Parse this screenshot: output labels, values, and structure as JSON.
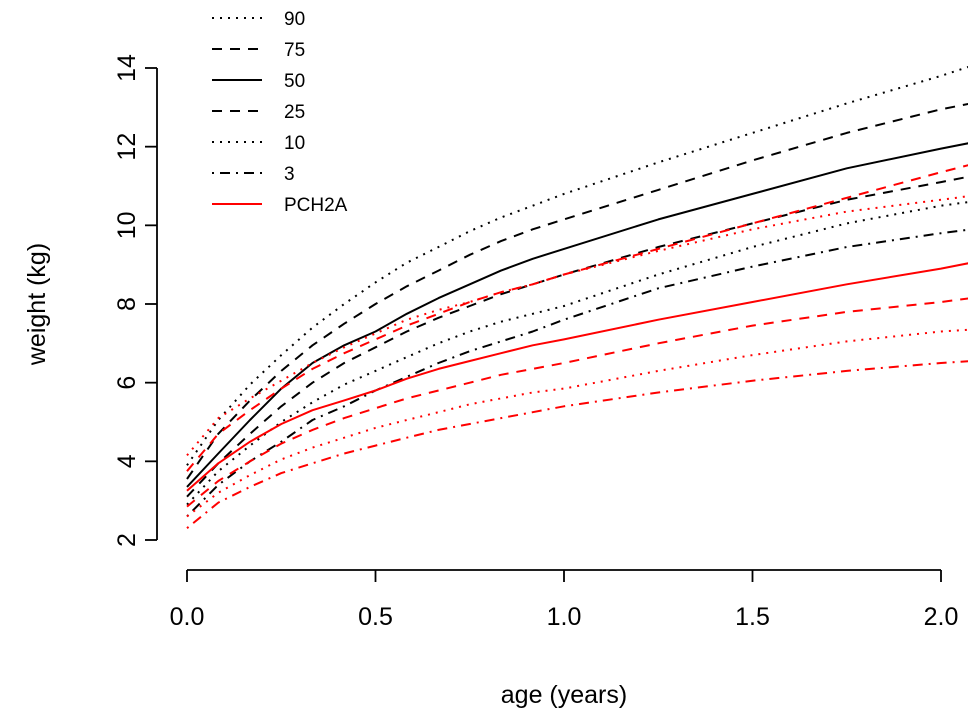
{
  "chart_data": {
    "type": "line",
    "xlabel": "age (years)",
    "ylabel": "weight (kg)",
    "xlim": [
      -0.08,
      2.08
    ],
    "ylim": [
      2,
      14
    ],
    "xticks": [
      0.0,
      0.5,
      1.0,
      1.5,
      2.0
    ],
    "xtick_labels": [
      "0.0",
      "0.5",
      "1.0",
      "1.5",
      "2.0"
    ],
    "yticks": [
      2,
      4,
      6,
      8,
      10,
      12,
      14
    ],
    "ytick_labels": [
      "2",
      "4",
      "6",
      "8",
      "10",
      "12",
      "14"
    ],
    "legend": {
      "position": "top-left",
      "entries": [
        {
          "label": "90",
          "style": "dotted",
          "color": "#000000"
        },
        {
          "label": "75",
          "style": "dashed",
          "color": "#000000"
        },
        {
          "label": "50",
          "style": "solid",
          "color": "#000000"
        },
        {
          "label": "25",
          "style": "dashed",
          "color": "#000000"
        },
        {
          "label": "10",
          "style": "dotted",
          "color": "#000000"
        },
        {
          "label": "3",
          "style": "dotdash",
          "color": "#000000"
        },
        {
          "label": "PCH2A",
          "style": "solid",
          "color": "#ff0000"
        }
      ]
    },
    "x": [
      0.0,
      0.083,
      0.167,
      0.25,
      0.333,
      0.417,
      0.5,
      0.583,
      0.667,
      0.75,
      0.833,
      0.917,
      1.0,
      1.25,
      1.5,
      1.75,
      2.0,
      2.08
    ],
    "series": [
      {
        "group": "reference",
        "percentile": "90",
        "style": "dotted",
        "color": "#000000",
        "values": [
          3.9,
          5.05,
          5.95,
          6.7,
          7.4,
          8.0,
          8.55,
          9.05,
          9.45,
          9.85,
          10.2,
          10.5,
          10.8,
          11.6,
          12.35,
          13.1,
          13.8,
          14.05
        ]
      },
      {
        "group": "reference",
        "percentile": "75",
        "style": "dashed",
        "color": "#000000",
        "values": [
          3.55,
          4.7,
          5.55,
          6.3,
          6.95,
          7.5,
          8.0,
          8.45,
          8.85,
          9.25,
          9.6,
          9.9,
          10.15,
          10.9,
          11.65,
          12.35,
          12.95,
          13.1
        ]
      },
      {
        "group": "reference",
        "percentile": "50",
        "style": "solid",
        "color": "#000000",
        "values": [
          3.35,
          4.2,
          5.05,
          5.85,
          6.5,
          6.95,
          7.3,
          7.75,
          8.15,
          8.5,
          8.85,
          9.15,
          9.4,
          10.15,
          10.8,
          11.45,
          11.95,
          12.1
        ]
      },
      {
        "group": "reference",
        "percentile": "25",
        "style": "dashed",
        "color": "#000000",
        "values": [
          3.1,
          3.95,
          4.7,
          5.4,
          6.0,
          6.5,
          6.9,
          7.3,
          7.65,
          7.95,
          8.25,
          8.5,
          8.75,
          9.45,
          10.05,
          10.65,
          11.1,
          11.25
        ]
      },
      {
        "group": "reference",
        "percentile": "10",
        "style": "dotted",
        "color": "#000000",
        "values": [
          2.9,
          3.75,
          4.4,
          5.0,
          5.5,
          5.95,
          6.3,
          6.65,
          7.0,
          7.3,
          7.55,
          7.75,
          7.95,
          8.75,
          9.45,
          10.05,
          10.5,
          10.6
        ]
      },
      {
        "group": "reference",
        "percentile": "3",
        "style": "dotdash",
        "color": "#000000",
        "values": [
          2.6,
          3.4,
          4.0,
          4.5,
          5.05,
          5.4,
          5.8,
          6.15,
          6.5,
          6.8,
          7.05,
          7.3,
          7.6,
          8.4,
          8.95,
          9.45,
          9.8,
          9.9
        ]
      },
      {
        "group": "PCH2A",
        "percentile": "90",
        "style": "dotted",
        "color": "#ff0000",
        "values": [
          4.15,
          5.1,
          5.6,
          6.05,
          6.5,
          6.9,
          7.25,
          7.6,
          7.85,
          8.05,
          8.3,
          8.5,
          8.75,
          9.35,
          9.9,
          10.35,
          10.65,
          10.75
        ]
      },
      {
        "group": "PCH2A",
        "percentile": "75",
        "style": "dashed",
        "color": "#ff0000",
        "values": [
          3.75,
          4.7,
          5.3,
          5.85,
          6.35,
          6.75,
          7.1,
          7.45,
          7.75,
          8.05,
          8.3,
          8.5,
          8.75,
          9.4,
          10.05,
          10.7,
          11.35,
          11.55
        ]
      },
      {
        "group": "PCH2A",
        "percentile": "50",
        "style": "solid",
        "color": "#ff0000",
        "values": [
          3.25,
          3.95,
          4.5,
          4.95,
          5.3,
          5.55,
          5.8,
          6.1,
          6.35,
          6.55,
          6.75,
          6.95,
          7.1,
          7.6,
          8.05,
          8.5,
          8.9,
          9.05
        ]
      },
      {
        "group": "PCH2A",
        "percentile": "25",
        "style": "dashed",
        "color": "#ff0000",
        "values": [
          2.85,
          3.5,
          4.0,
          4.45,
          4.8,
          5.1,
          5.35,
          5.6,
          5.8,
          6.0,
          6.2,
          6.35,
          6.5,
          7.0,
          7.45,
          7.8,
          8.05,
          8.15
        ]
      },
      {
        "group": "PCH2A",
        "percentile": "10",
        "style": "dotted",
        "color": "#ff0000",
        "values": [
          2.6,
          3.2,
          3.65,
          4.05,
          4.35,
          4.6,
          4.85,
          5.05,
          5.25,
          5.45,
          5.6,
          5.75,
          5.85,
          6.3,
          6.7,
          7.05,
          7.3,
          7.35
        ]
      },
      {
        "group": "PCH2A",
        "percentile": "3",
        "style": "dotdash",
        "color": "#ff0000",
        "values": [
          2.3,
          2.95,
          3.35,
          3.7,
          3.95,
          4.2,
          4.4,
          4.6,
          4.8,
          4.95,
          5.1,
          5.25,
          5.4,
          5.75,
          6.05,
          6.3,
          6.5,
          6.55
        ]
      }
    ]
  }
}
